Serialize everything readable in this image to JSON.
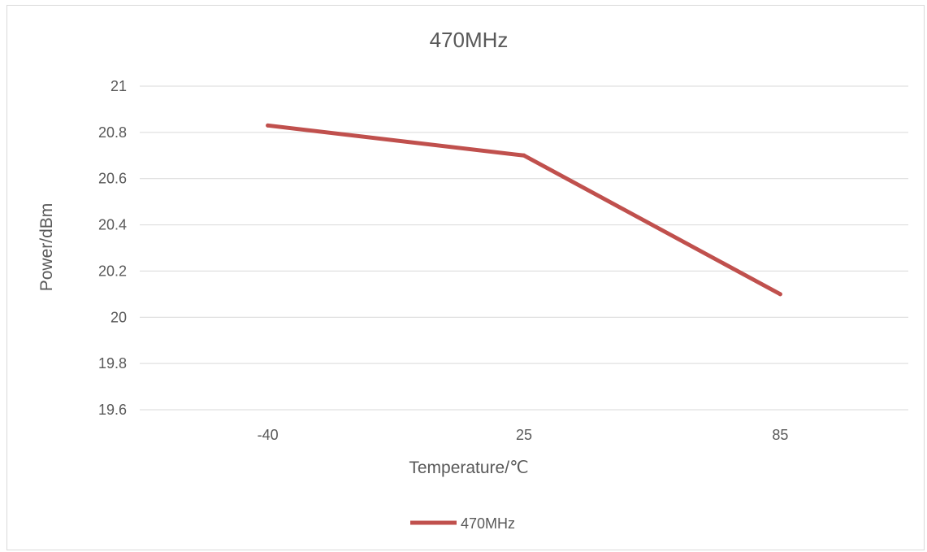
{
  "chart_data": {
    "type": "line",
    "title": "470MHz",
    "xlabel": "Temperature/℃",
    "ylabel": "Power/dBm",
    "categories": [
      "-40",
      "25",
      "85"
    ],
    "series": [
      {
        "name": "470MHz",
        "values": [
          20.83,
          20.7,
          20.1
        ],
        "color": "#c0504d"
      }
    ],
    "ylim": [
      19.6,
      21
    ],
    "yticks": [
      "19.6",
      "19.8",
      "20",
      "20.2",
      "20.4",
      "20.6",
      "20.8",
      "21"
    ],
    "grid": true,
    "legend": "bottom"
  }
}
